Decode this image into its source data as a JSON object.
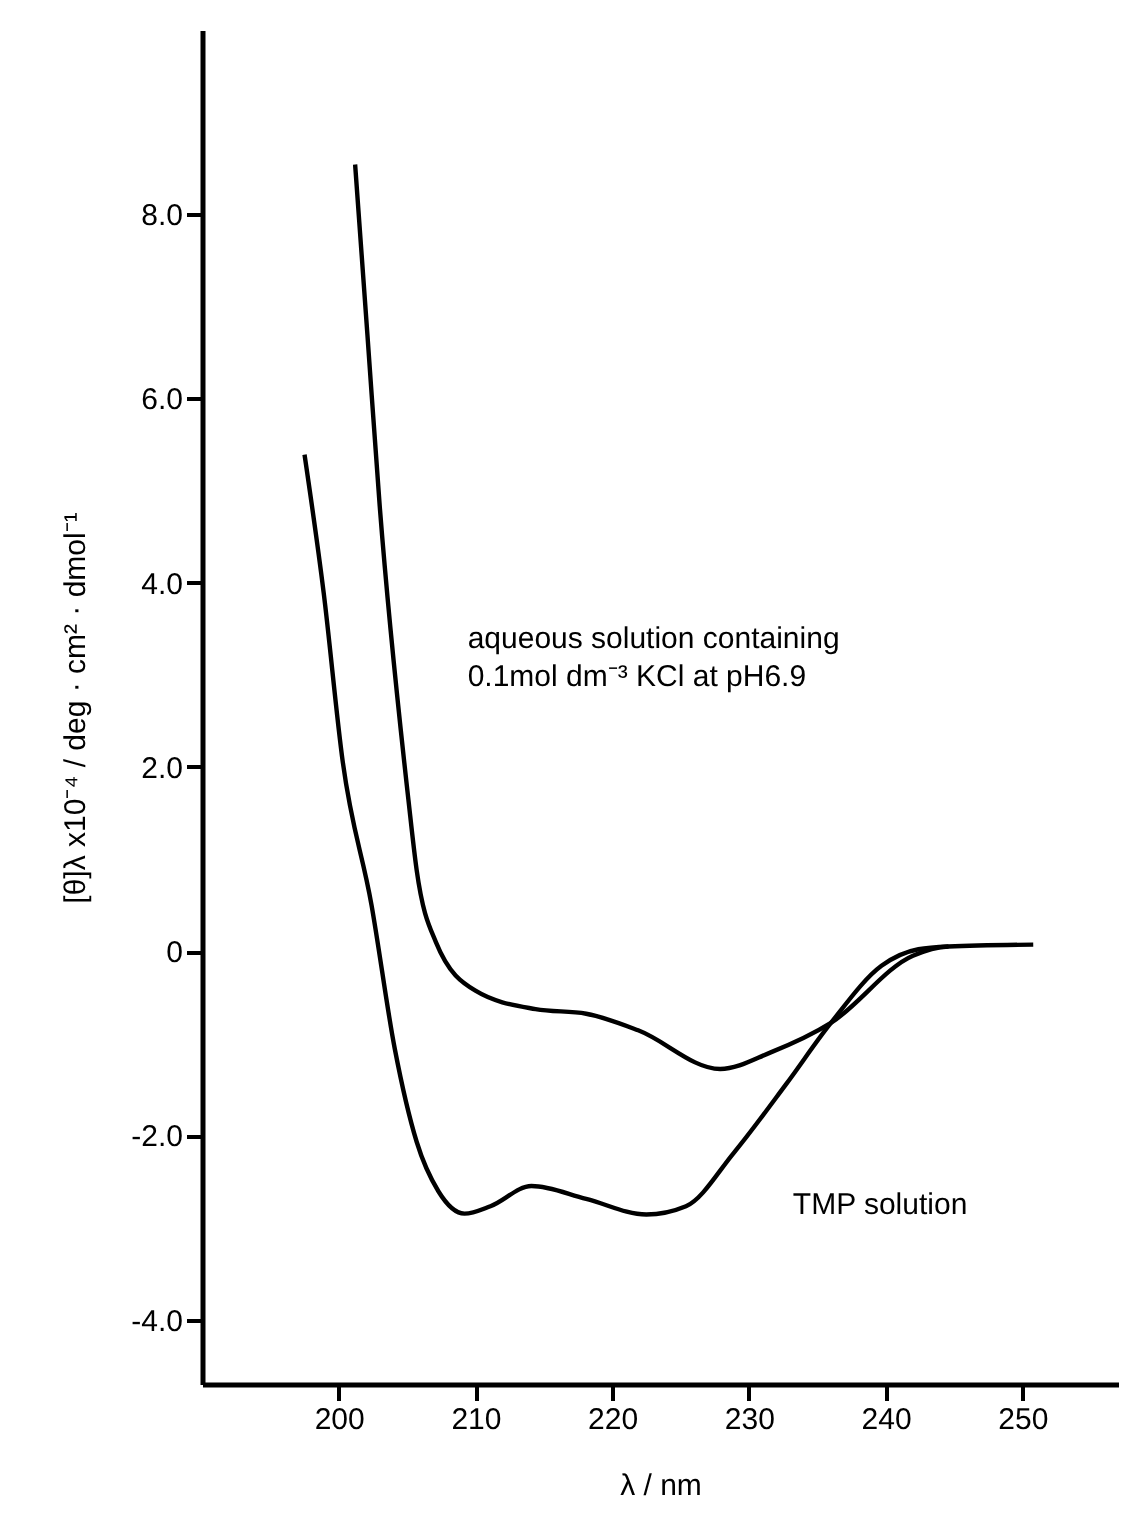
{
  "chart_data": {
    "type": "line",
    "xlabel": "λ / nm",
    "ylabel": "[θ]λ x10⁻⁴ / deg · cm² · dmol⁻¹",
    "series": [
      {
        "color": "#000000",
        "x": [
          201.2,
          202.1,
          203.0,
          205.1,
          205.7,
          207.1,
          210.0,
          214.4,
          218.1,
          221.9,
          227.9,
          231.6,
          236.0,
          242.0,
          244.6,
          250.8
        ],
        "values": [
          8.54,
          6.69,
          4.83,
          1.64,
          0.88,
          0.1,
          -0.43,
          -0.63,
          -0.68,
          -0.86,
          -1.28,
          -1.1,
          -0.78,
          -0.05,
          0.05,
          0.07
        ]
      },
      {
        "color": "#000000",
        "x": [
          197.5,
          198.9,
          200.3,
          202.4,
          204.1,
          205.7,
          207.3,
          209.2,
          211.1,
          214.1,
          218.1,
          222.5,
          225.4,
          228.9,
          232.7,
          236.0,
          239.7,
          242.4,
          244.6
        ],
        "values": [
          5.39,
          3.89,
          2.05,
          0.5,
          -1.06,
          -2.07,
          -2.61,
          -2.85,
          -2.77,
          -2.55,
          -2.69,
          -2.86,
          -2.77,
          -2.19,
          -1.45,
          -0.78,
          -0.16,
          0.02,
          0.05
        ]
      }
    ],
    "annotations": [
      "aqueous solution containing\n0.1mol dm⁻³ KCl at pH6.9",
      "TMP solution"
    ],
    "xlim": [
      190,
      257
    ],
    "xticks": [
      200,
      210,
      220,
      230,
      240,
      250
    ],
    "ylim": [
      -4.7,
      10
    ],
    "yticks": [
      {
        "value": -4,
        "label": "-4.0"
      },
      {
        "value": -2,
        "label": "-2.0"
      },
      {
        "value": 0,
        "label": "0"
      },
      {
        "value": 2,
        "label": "2.0"
      },
      {
        "value": 4,
        "label": "4.0"
      },
      {
        "value": 6,
        "label": "6.0"
      },
      {
        "value": 8,
        "label": "8.0"
      }
    ],
    "grid": false,
    "marker": "none",
    "line_style": "solid"
  }
}
